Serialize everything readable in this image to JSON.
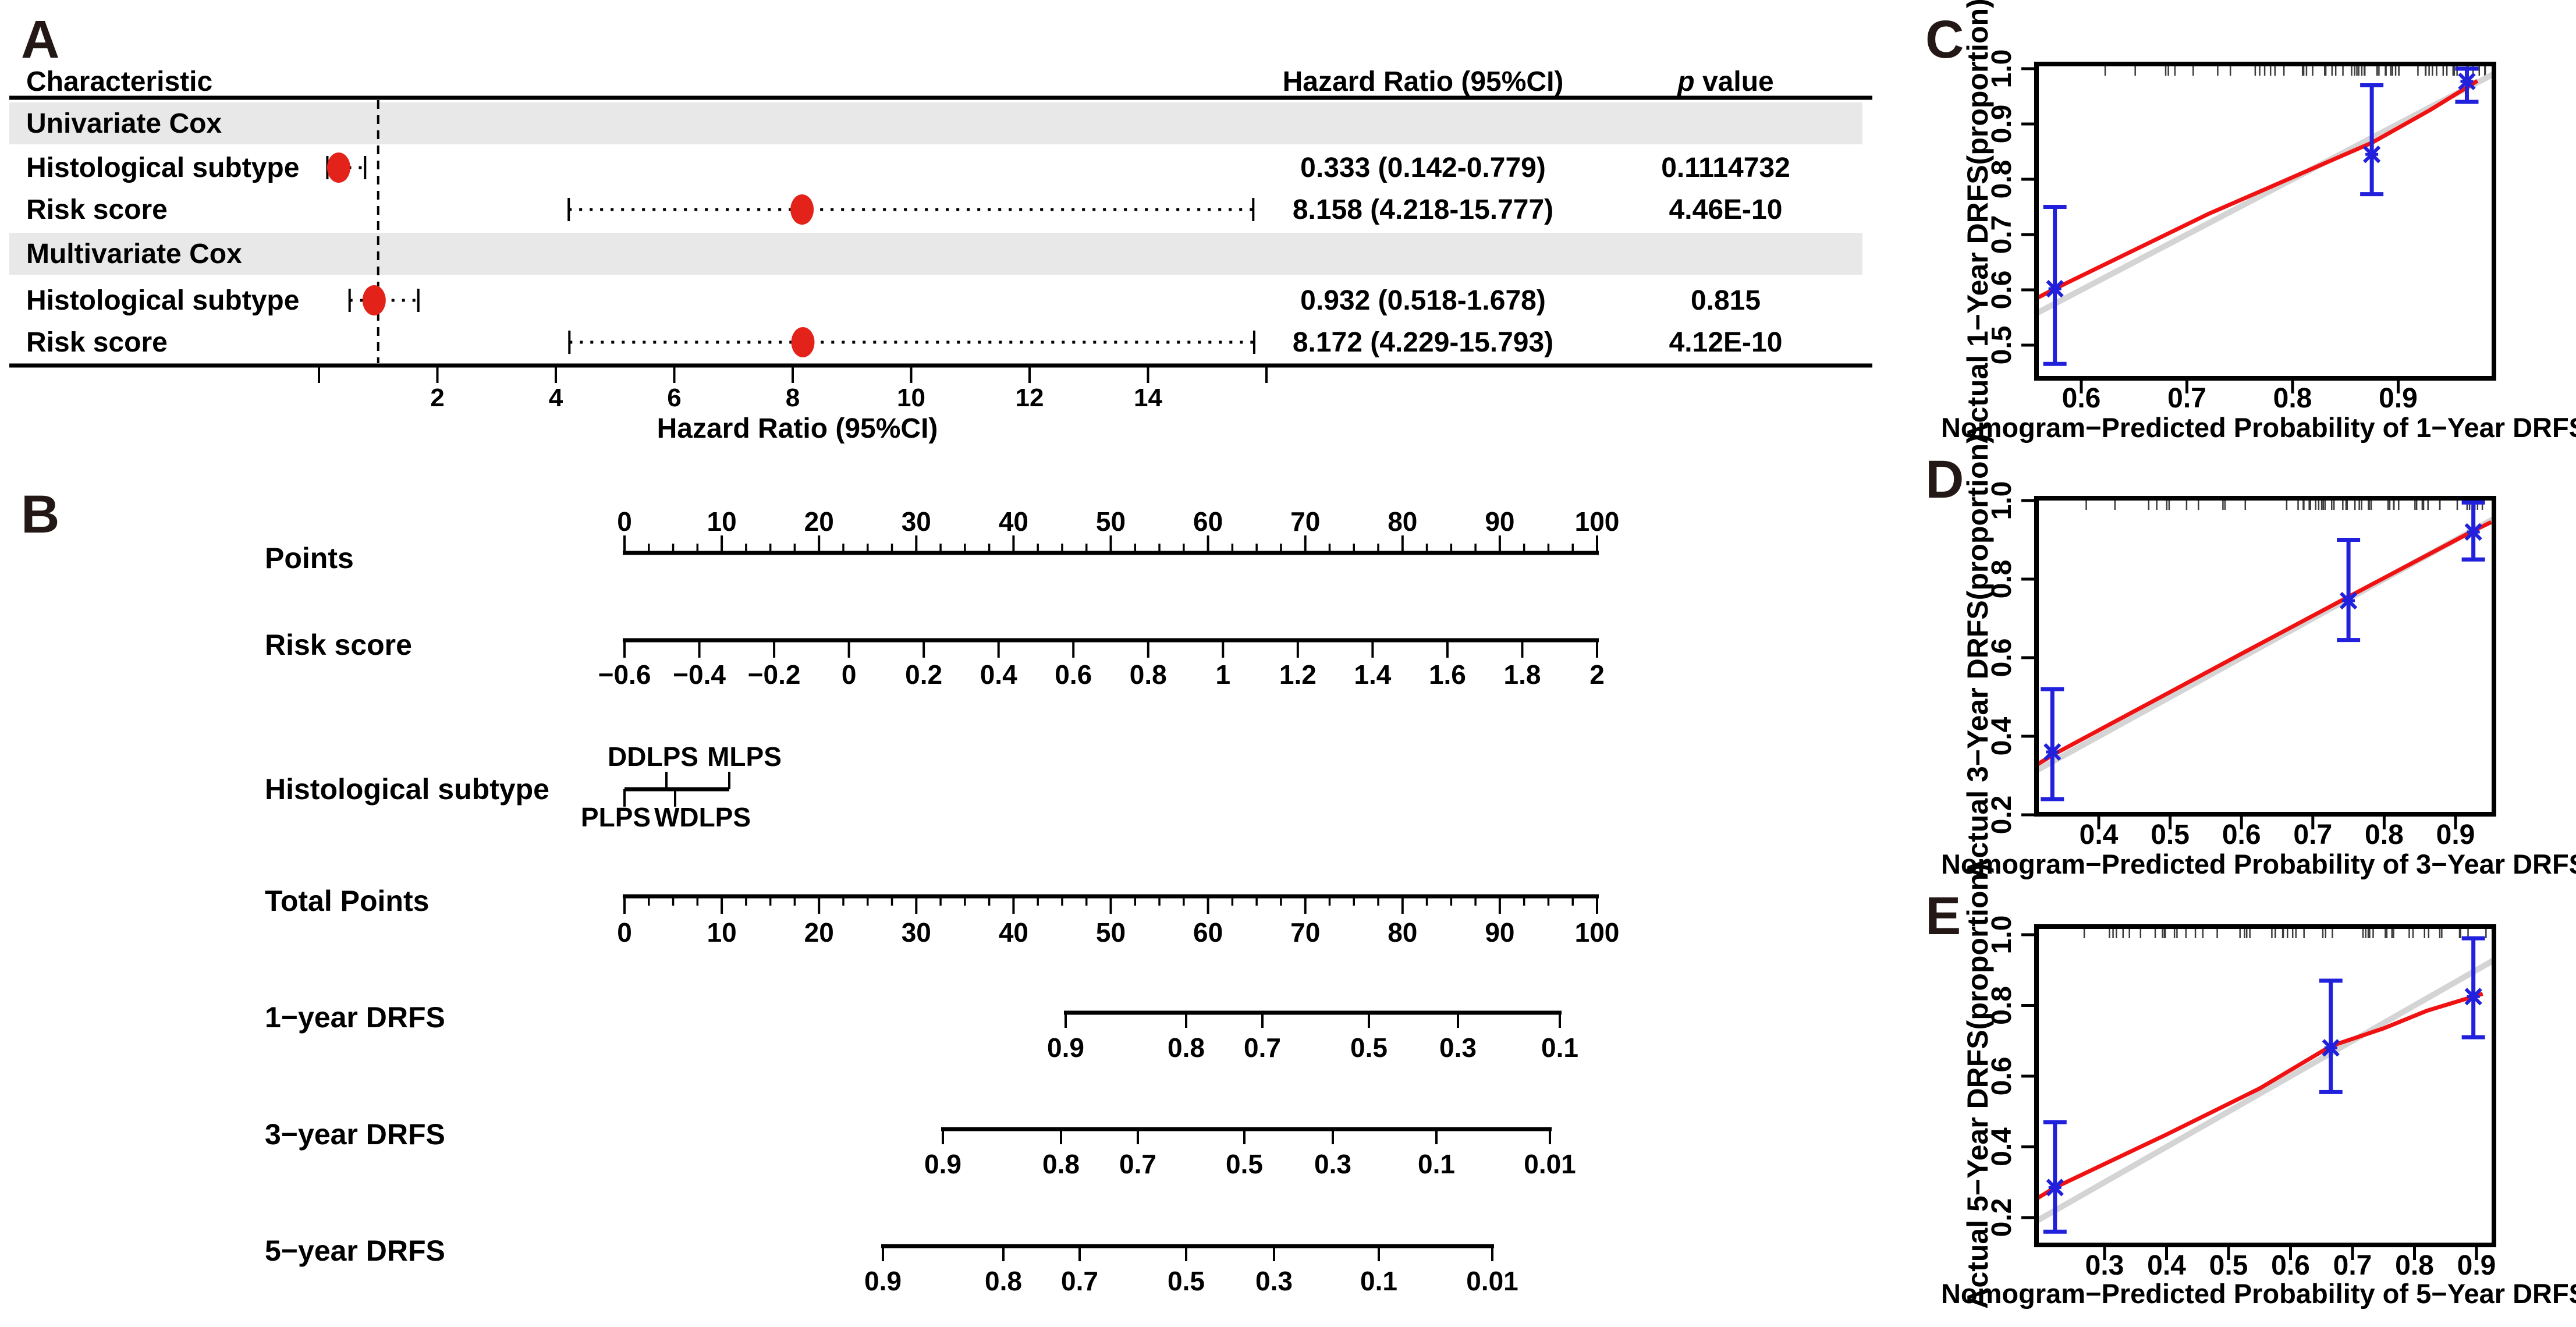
{
  "colors": {
    "dot_red": "#e32219",
    "line_red": "#f01212",
    "error_blue": "#2121dd",
    "ideal_gray": "#d4d4d4",
    "band_gray": "#e8e8e8",
    "rug_gray": "#3c3c3c",
    "text_black": "#000000"
  },
  "chart_data": [
    {
      "id": "A",
      "type": "forest",
      "letter": "A",
      "col_characteristic": "Characteristic",
      "col_hr": "Hazard Ratio (95%CI)",
      "col_p_italic": "p",
      "col_p_rest": " value",
      "axis_title": "Hazard Ratio (95%CI)",
      "axis_range": [
        0,
        16
      ],
      "axis_ticks": [
        2,
        4,
        6,
        8,
        10,
        12,
        14
      ],
      "ref_line": 1,
      "sections": [
        {
          "label": "Univariate Cox",
          "rows": [
            {
              "label": "Histological subtype",
              "hr": 0.333,
              "ci_low": 0.142,
              "ci_high": 0.779,
              "hr_text": "0.333 (0.142-0.779)",
              "p_text": "0.1114732"
            },
            {
              "label": "Risk score",
              "hr": 8.158,
              "ci_low": 4.218,
              "ci_high": 15.777,
              "hr_text": "8.158 (4.218-15.777)",
              "p_text": "4.46E-10"
            }
          ]
        },
        {
          "label": "Multivariate Cox",
          "rows": [
            {
              "label": "Histological subtype",
              "hr": 0.932,
              "ci_low": 0.518,
              "ci_high": 1.678,
              "hr_text": "0.932 (0.518-1.678)",
              "p_text": "0.815"
            },
            {
              "label": "Risk score",
              "hr": 8.172,
              "ci_low": 4.229,
              "ci_high": 15.793,
              "hr_text": "8.172 (4.229-15.793)",
              "p_text": "4.12E-10"
            }
          ]
        }
      ]
    },
    {
      "id": "B",
      "type": "nomogram",
      "letter": "B",
      "rows": [
        {
          "name": "Points",
          "labels": [
            "0",
            "10",
            "20",
            "30",
            "40",
            "50",
            "60",
            "70",
            "80",
            "90",
            "100"
          ]
        },
        {
          "name": "Risk score",
          "labels": [
            "−0.6",
            "−0.4",
            "−0.2",
            "0",
            "0.2",
            "0.4",
            "0.6",
            "0.8",
            "1",
            "1.2",
            "1.4",
            "1.6",
            "1.8",
            "2"
          ]
        },
        {
          "name": "Histological subtype",
          "top_labels": [
            "DDLPS",
            "MLPS"
          ],
          "bottom_labels": [
            "PLPS",
            "WDLPS"
          ]
        },
        {
          "name": "Total Points",
          "labels": [
            "0",
            "10",
            "20",
            "30",
            "40",
            "50",
            "60",
            "70",
            "80",
            "90",
            "100"
          ]
        },
        {
          "name": "1−year DRFS",
          "labels": [
            "0.9",
            "0.8",
            "0.7",
            "0.5",
            "0.3",
            "0.1"
          ]
        },
        {
          "name": "3−year DRFS",
          "labels": [
            "0.9",
            "0.8",
            "0.7",
            "0.5",
            "0.3",
            "0.1",
            "0.01"
          ]
        },
        {
          "name": "5−year DRFS",
          "labels": [
            "0.9",
            "0.8",
            "0.7",
            "0.5",
            "0.3",
            "0.1",
            "0.01"
          ]
        }
      ]
    },
    {
      "id": "C",
      "type": "scatter",
      "letter": "C",
      "xlabel": "Nomogram−Predicted Probability of 1−Year DRFS",
      "ylabel": "Actual 1−Year DRFS(proportion)",
      "xticks": [
        "0.6",
        "0.7",
        "0.8",
        "0.9"
      ],
      "yticks": [
        "0.5",
        "0.6",
        "0.7",
        "0.8",
        "0.9",
        "1.0"
      ],
      "xlim": [
        0.558,
        0.99
      ],
      "ylim": [
        0.44,
        1.008
      ],
      "points": {
        "x": [
          0.575,
          0.875,
          0.965
        ],
        "y": [
          0.602,
          0.845,
          0.977
        ],
        "ci_low": [
          0.466,
          0.773,
          0.94
        ],
        "ci_high": [
          0.75,
          0.97,
          1.0
        ]
      },
      "calibration_line": [
        [
          0.558,
          0.585
        ],
        [
          0.575,
          0.602
        ],
        [
          0.72,
          0.737
        ],
        [
          0.875,
          0.866
        ],
        [
          0.93,
          0.925
        ],
        [
          0.975,
          0.978
        ]
      ],
      "ideal_line": true,
      "rug": true
    },
    {
      "id": "D",
      "type": "scatter",
      "letter": "D",
      "xlabel": "Nomogram−Predicted Probability of 3−Year DRFS",
      "ylabel": "Actual 3−Year DRFS(proportion)",
      "xticks": [
        "0.4",
        "0.5",
        "0.6",
        "0.7",
        "0.8",
        "0.9"
      ],
      "yticks": [
        "0.2",
        "0.4",
        "0.6",
        "0.8",
        "1.0"
      ],
      "xlim": [
        0.313,
        0.954
      ],
      "ylim": [
        0.196,
        1.004
      ],
      "points": {
        "x": [
          0.335,
          0.75,
          0.925
        ],
        "y": [
          0.36,
          0.745,
          0.92
        ],
        "ci_low": [
          0.24,
          0.645,
          0.85
        ],
        "ci_high": [
          0.52,
          0.9,
          0.995
        ]
      },
      "calibration_line": [
        [
          0.313,
          0.327
        ],
        [
          0.335,
          0.352
        ],
        [
          0.6,
          0.61
        ],
        [
          0.75,
          0.755
        ],
        [
          0.925,
          0.923
        ],
        [
          0.95,
          0.945
        ]
      ],
      "ideal_line": true,
      "rug": true
    },
    {
      "id": "E",
      "type": "scatter",
      "letter": "E",
      "xlabel": "Nomogram−Predicted Probability of 5−Year DRFS",
      "ylabel": "Actual 5−Year DRFS(proportion)",
      "xticks": [
        "0.3",
        "0.4",
        "0.5",
        "0.6",
        "0.7",
        "0.8",
        "0.9"
      ],
      "yticks": [
        "0.2",
        "0.4",
        "0.6",
        "0.8",
        "1.0"
      ],
      "xlim": [
        0.19,
        0.928
      ],
      "ylim": [
        0.123,
        1.023
      ],
      "points": {
        "x": [
          0.22,
          0.665,
          0.895
        ],
        "y": [
          0.285,
          0.68,
          0.825
        ],
        "ci_low": [
          0.16,
          0.555,
          0.71
        ],
        "ci_high": [
          0.47,
          0.87,
          0.99
        ]
      },
      "calibration_line": [
        [
          0.19,
          0.253
        ],
        [
          0.22,
          0.285
        ],
        [
          0.4,
          0.435
        ],
        [
          0.55,
          0.565
        ],
        [
          0.665,
          0.685
        ],
        [
          0.75,
          0.735
        ],
        [
          0.82,
          0.785
        ],
        [
          0.895,
          0.825
        ],
        [
          0.91,
          0.833
        ]
      ],
      "ideal_line": true,
      "rug": true
    }
  ]
}
